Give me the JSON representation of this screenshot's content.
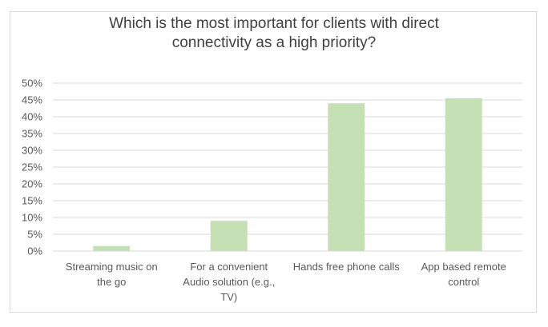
{
  "chart_data": {
    "type": "bar",
    "title_lines": [
      "Which is the most important for clients with direct",
      "connectivity as a high priority?"
    ],
    "categories": [
      [
        "Streaming music on",
        "the go"
      ],
      [
        "For a convenient",
        "Audio solution (e.g.,",
        "TV)"
      ],
      [
        "Hands free phone calls"
      ],
      [
        "App based remote",
        "control"
      ]
    ],
    "values": [
      1.5,
      9,
      44,
      45.5
    ],
    "y_ticks": [
      "0%",
      "5%",
      "10%",
      "15%",
      "20%",
      "25%",
      "30%",
      "35%",
      "40%",
      "45%",
      "50%"
    ],
    "ylim": [
      0,
      50
    ],
    "grid": true,
    "legend": "none",
    "bar_color": "#c5e0b4",
    "grid_color": "#d9d9d9"
  }
}
